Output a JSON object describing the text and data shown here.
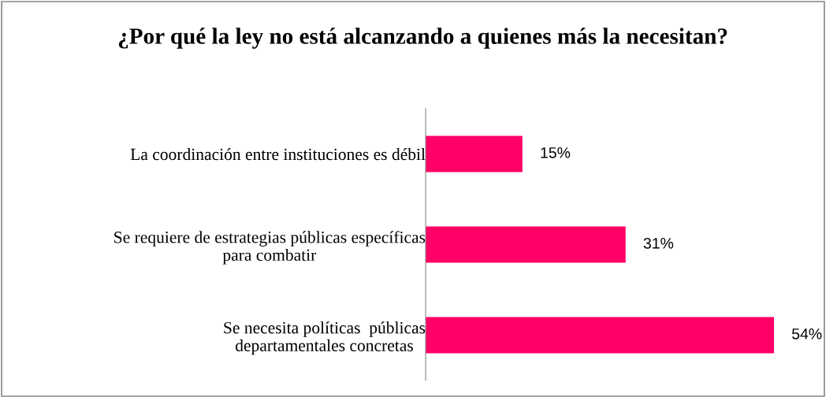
{
  "chart_data": {
    "type": "bar",
    "orientation": "horizontal",
    "title": "¿Por qué la ley no está alcanzando a quienes más la necesitan?",
    "categories": [
      "La coordinación entre instituciones es débil",
      "Se requiere de estrategias públicas específicas\npara combatir",
      "Se necesita políticas  públicas\ndepartamentales concretas"
    ],
    "values": [
      15,
      31,
      54
    ],
    "value_labels": [
      "15%",
      "31%",
      "54%"
    ],
    "color": "#ff0066",
    "grid": false,
    "legend": false
  }
}
